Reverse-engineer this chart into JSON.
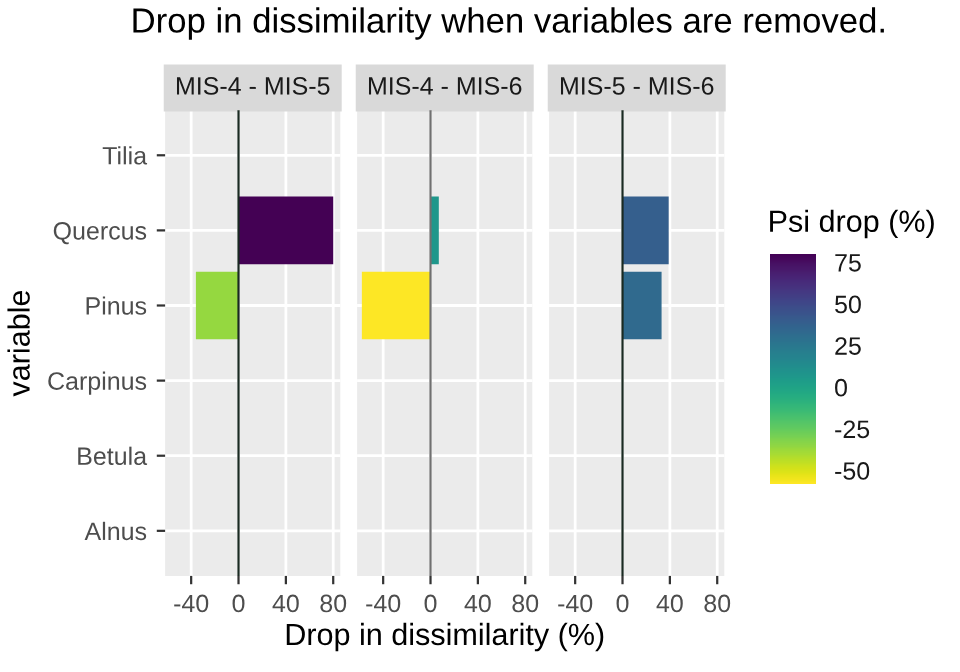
{
  "chart_data": [
    {
      "type": "bar",
      "orientation": "horizontal",
      "title": "MIS-4 - MIS-5",
      "ylabel": "variable",
      "annotations": [
        "Drop in dissimilarity when variables are removed."
      ],
      "categories": [
        "Tilia",
        "Quercus",
        "Pinus",
        "Carpinus",
        "Betula",
        "Alnus"
      ],
      "values": [
        0,
        80,
        -36,
        0,
        0,
        0
      ],
      "xlim": [
        -62,
        86
      ],
      "xticks": [
        -40,
        0,
        40,
        80
      ],
      "grid": true,
      "ref_lines": [
        {
          "axis": "x",
          "value": 0,
          "color": "#1a2a22"
        }
      ]
    },
    {
      "type": "bar",
      "orientation": "horizontal",
      "title": "MIS-4 - MIS-6",
      "xlabel": "Drop in dissimilarity (%)",
      "tick_labels": "x",
      "categories": [
        null,
        null,
        null,
        null,
        null,
        null
      ],
      "values": [
        0,
        7,
        -58,
        0,
        0,
        0
      ],
      "xlim": [
        -62,
        86
      ],
      "xticks": [
        -40,
        0,
        40,
        80
      ],
      "grid": true,
      "ref_lines": [
        {
          "axis": "x",
          "value": 0,
          "color": "#707070"
        }
      ]
    },
    {
      "type": "bar",
      "orientation": "horizontal",
      "title": "MIS-5 - MIS-6",
      "tick_labels": "x",
      "clabel": "Psi drop (%)",
      "categories": [
        null,
        null,
        null,
        null,
        null,
        null
      ],
      "values": [
        0,
        39,
        33,
        0,
        0,
        0
      ],
      "clim": [
        -58,
        80
      ],
      "cticks": [
        75,
        50,
        25,
        0,
        -25,
        -50
      ],
      "xlim": [
        -62,
        86
      ],
      "xticks": [
        -40,
        0,
        40,
        80
      ],
      "grid": true,
      "ref_lines": [
        {
          "axis": "x",
          "value": 0,
          "color": "#1a2a22"
        }
      ]
    }
  ]
}
